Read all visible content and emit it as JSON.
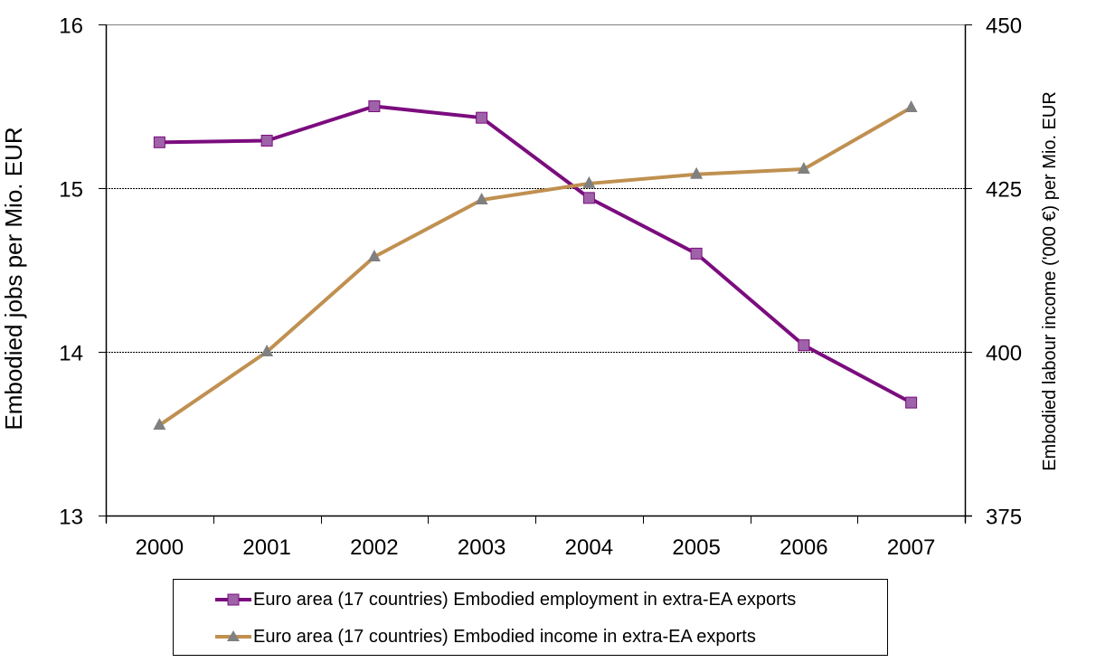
{
  "chart_data": {
    "type": "line",
    "title": "",
    "xlabel": "",
    "ylabel": "Embodied jobs per Mio. EUR",
    "y2label": "Embodied labour income ('000 €) per Mio. EUR",
    "categories": [
      "2000",
      "2001",
      "2002",
      "2003",
      "2004",
      "2005",
      "2006",
      "2007"
    ],
    "ylim": [
      13,
      16
    ],
    "yticks": [
      13,
      14,
      15,
      16
    ],
    "y2lim": [
      375,
      450
    ],
    "y2ticks": [
      375,
      400,
      425,
      450
    ],
    "grid": "horizontal-dashed",
    "legend_position": "bottom",
    "series": [
      {
        "name": "Euro area (17 countries) Embodied employment in extra-EA exports",
        "axis": "left",
        "line_color": "#7B0C7E",
        "marker": "square",
        "marker_color": "#9E62A8",
        "values": [
          15.28,
          15.29,
          15.5,
          15.43,
          14.94,
          14.6,
          14.04,
          13.69
        ]
      },
      {
        "name": "Euro area (17 countries) Embodied income in extra-EA exports",
        "axis": "right",
        "line_color": "#C09050",
        "marker": "triangle",
        "marker_color": "#808080",
        "values": [
          388.8,
          400.0,
          414.5,
          423.2,
          425.7,
          427.1,
          427.9,
          437.3
        ]
      }
    ]
  }
}
